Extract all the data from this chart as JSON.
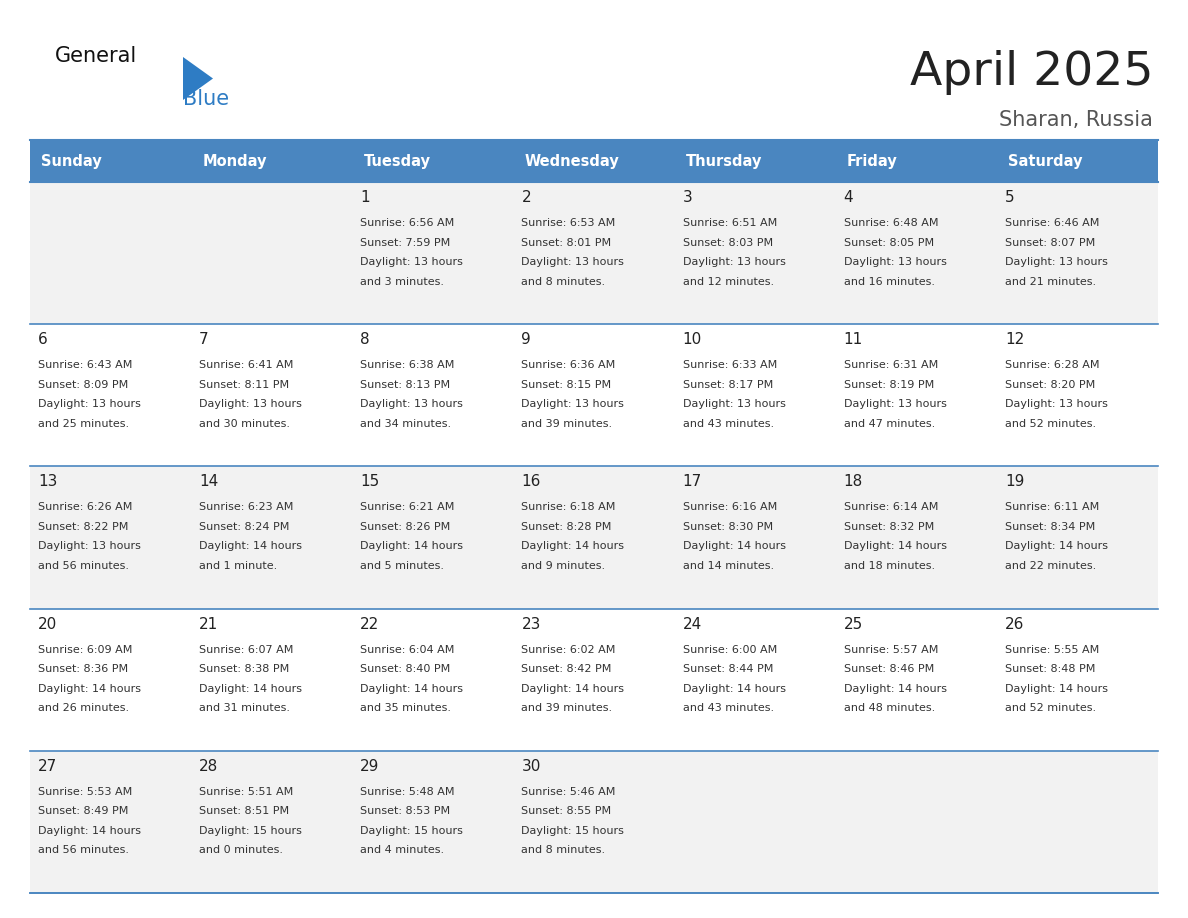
{
  "title": "April 2025",
  "subtitle": "Sharan, Russia",
  "header_color": "#4a86c0",
  "header_text_color": "#ffffff",
  "row_bg_odd": "#f2f2f2",
  "row_bg_even": "#ffffff",
  "border_color": "#4a86c0",
  "text_color": "#222222",
  "info_color": "#333333",
  "logo_black": "#111111",
  "logo_blue": "#2e7cc4",
  "days_of_week": [
    "Sunday",
    "Monday",
    "Tuesday",
    "Wednesday",
    "Thursday",
    "Friday",
    "Saturday"
  ],
  "weeks": [
    [
      {
        "day": ""
      },
      {
        "day": ""
      },
      {
        "day": "1",
        "sunrise": "6:56 AM",
        "sunset": "7:59 PM",
        "daylight": "13 hours",
        "daylight2": "and 3 minutes."
      },
      {
        "day": "2",
        "sunrise": "6:53 AM",
        "sunset": "8:01 PM",
        "daylight": "13 hours",
        "daylight2": "and 8 minutes."
      },
      {
        "day": "3",
        "sunrise": "6:51 AM",
        "sunset": "8:03 PM",
        "daylight": "13 hours",
        "daylight2": "and 12 minutes."
      },
      {
        "day": "4",
        "sunrise": "6:48 AM",
        "sunset": "8:05 PM",
        "daylight": "13 hours",
        "daylight2": "and 16 minutes."
      },
      {
        "day": "5",
        "sunrise": "6:46 AM",
        "sunset": "8:07 PM",
        "daylight": "13 hours",
        "daylight2": "and 21 minutes."
      }
    ],
    [
      {
        "day": "6",
        "sunrise": "6:43 AM",
        "sunset": "8:09 PM",
        "daylight": "13 hours",
        "daylight2": "and 25 minutes."
      },
      {
        "day": "7",
        "sunrise": "6:41 AM",
        "sunset": "8:11 PM",
        "daylight": "13 hours",
        "daylight2": "and 30 minutes."
      },
      {
        "day": "8",
        "sunrise": "6:38 AM",
        "sunset": "8:13 PM",
        "daylight": "13 hours",
        "daylight2": "and 34 minutes."
      },
      {
        "day": "9",
        "sunrise": "6:36 AM",
        "sunset": "8:15 PM",
        "daylight": "13 hours",
        "daylight2": "and 39 minutes."
      },
      {
        "day": "10",
        "sunrise": "6:33 AM",
        "sunset": "8:17 PM",
        "daylight": "13 hours",
        "daylight2": "and 43 minutes."
      },
      {
        "day": "11",
        "sunrise": "6:31 AM",
        "sunset": "8:19 PM",
        "daylight": "13 hours",
        "daylight2": "and 47 minutes."
      },
      {
        "day": "12",
        "sunrise": "6:28 AM",
        "sunset": "8:20 PM",
        "daylight": "13 hours",
        "daylight2": "and 52 minutes."
      }
    ],
    [
      {
        "day": "13",
        "sunrise": "6:26 AM",
        "sunset": "8:22 PM",
        "daylight": "13 hours",
        "daylight2": "and 56 minutes."
      },
      {
        "day": "14",
        "sunrise": "6:23 AM",
        "sunset": "8:24 PM",
        "daylight": "14 hours",
        "daylight2": "and 1 minute."
      },
      {
        "day": "15",
        "sunrise": "6:21 AM",
        "sunset": "8:26 PM",
        "daylight": "14 hours",
        "daylight2": "and 5 minutes."
      },
      {
        "day": "16",
        "sunrise": "6:18 AM",
        "sunset": "8:28 PM",
        "daylight": "14 hours",
        "daylight2": "and 9 minutes."
      },
      {
        "day": "17",
        "sunrise": "6:16 AM",
        "sunset": "8:30 PM",
        "daylight": "14 hours",
        "daylight2": "and 14 minutes."
      },
      {
        "day": "18",
        "sunrise": "6:14 AM",
        "sunset": "8:32 PM",
        "daylight": "14 hours",
        "daylight2": "and 18 minutes."
      },
      {
        "day": "19",
        "sunrise": "6:11 AM",
        "sunset": "8:34 PM",
        "daylight": "14 hours",
        "daylight2": "and 22 minutes."
      }
    ],
    [
      {
        "day": "20",
        "sunrise": "6:09 AM",
        "sunset": "8:36 PM",
        "daylight": "14 hours",
        "daylight2": "and 26 minutes."
      },
      {
        "day": "21",
        "sunrise": "6:07 AM",
        "sunset": "8:38 PM",
        "daylight": "14 hours",
        "daylight2": "and 31 minutes."
      },
      {
        "day": "22",
        "sunrise": "6:04 AM",
        "sunset": "8:40 PM",
        "daylight": "14 hours",
        "daylight2": "and 35 minutes."
      },
      {
        "day": "23",
        "sunrise": "6:02 AM",
        "sunset": "8:42 PM",
        "daylight": "14 hours",
        "daylight2": "and 39 minutes."
      },
      {
        "day": "24",
        "sunrise": "6:00 AM",
        "sunset": "8:44 PM",
        "daylight": "14 hours",
        "daylight2": "and 43 minutes."
      },
      {
        "day": "25",
        "sunrise": "5:57 AM",
        "sunset": "8:46 PM",
        "daylight": "14 hours",
        "daylight2": "and 48 minutes."
      },
      {
        "day": "26",
        "sunrise": "5:55 AM",
        "sunset": "8:48 PM",
        "daylight": "14 hours",
        "daylight2": "and 52 minutes."
      }
    ],
    [
      {
        "day": "27",
        "sunrise": "5:53 AM",
        "sunset": "8:49 PM",
        "daylight": "14 hours",
        "daylight2": "and 56 minutes."
      },
      {
        "day": "28",
        "sunrise": "5:51 AM",
        "sunset": "8:51 PM",
        "daylight": "15 hours",
        "daylight2": "and 0 minutes."
      },
      {
        "day": "29",
        "sunrise": "5:48 AM",
        "sunset": "8:53 PM",
        "daylight": "15 hours",
        "daylight2": "and 4 minutes."
      },
      {
        "day": "30",
        "sunrise": "5:46 AM",
        "sunset": "8:55 PM",
        "daylight": "15 hours",
        "daylight2": "and 8 minutes."
      },
      {
        "day": ""
      },
      {
        "day": ""
      },
      {
        "day": ""
      }
    ]
  ]
}
